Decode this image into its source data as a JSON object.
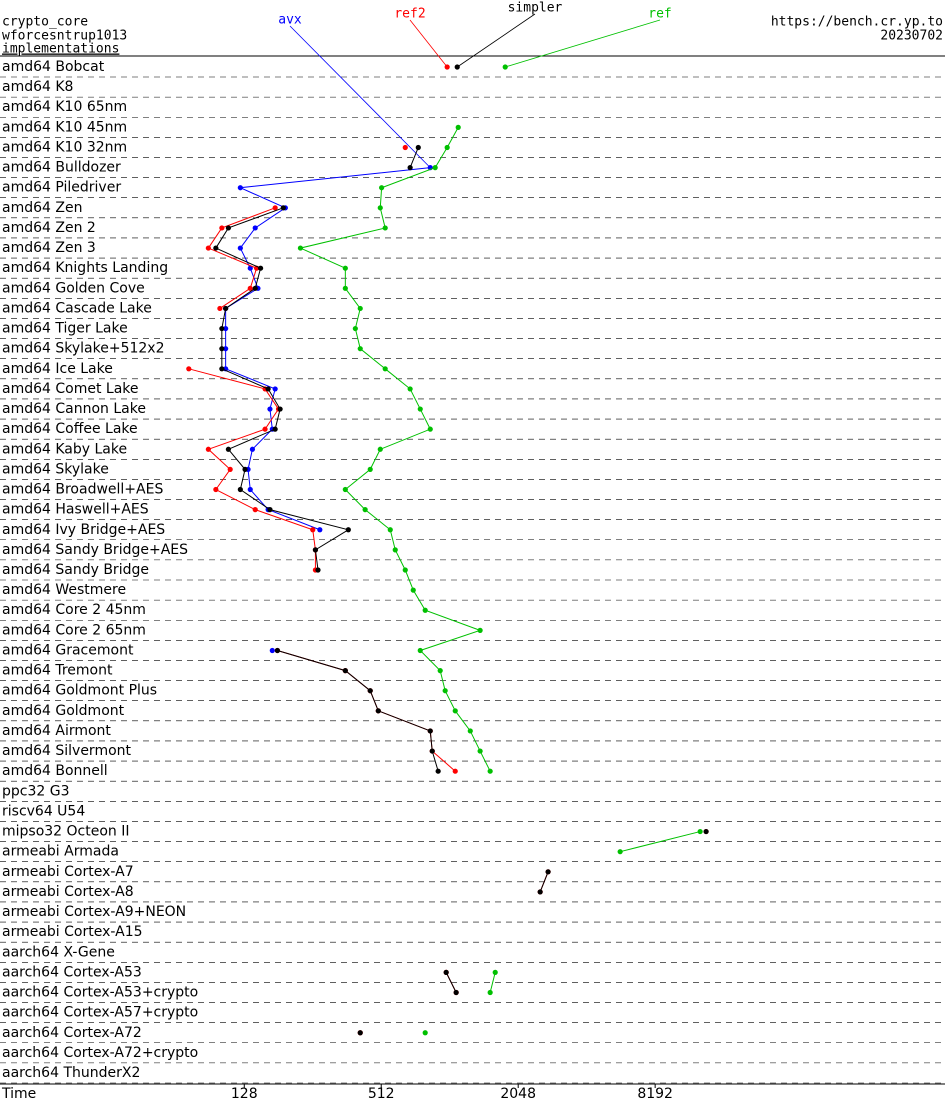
{
  "chart_data": {
    "type": "line",
    "log_x": true,
    "header": {
      "left": [
        "crypto_core",
        "wforcesntrup1013",
        "implementations"
      ],
      "right": [
        "https://bench.cr.yp.to",
        "20230702"
      ]
    },
    "x_label": "Time",
    "xlim": [
      10.8,
      154000
    ],
    "xticks": [
      128,
      512,
      2048,
      8192
    ],
    "categories": [
      "amd64 Bobcat",
      "amd64 K8",
      "amd64 K10 65nm",
      "amd64 K10 45nm",
      "amd64 K10 32nm",
      "amd64 Bulldozer",
      "amd64 Piledriver",
      "amd64 Zen",
      "amd64 Zen 2",
      "amd64 Zen 3",
      "amd64 Knights Landing",
      "amd64 Golden Cove",
      "amd64 Cascade Lake",
      "amd64 Tiger Lake",
      "amd64 Skylake+512x2",
      "amd64 Ice Lake",
      "amd64 Comet Lake",
      "amd64 Cannon Lake",
      "amd64 Coffee Lake",
      "amd64 Kaby Lake",
      "amd64 Skylake",
      "amd64 Broadwell+AES",
      "amd64 Haswell+AES",
      "amd64 Ivy Bridge+AES",
      "amd64 Sandy Bridge+AES",
      "amd64 Sandy Bridge",
      "amd64 Westmere",
      "amd64 Core 2 45nm",
      "amd64 Core 2 65nm",
      "amd64 Gracemont",
      "amd64 Tremont",
      "amd64 Goldmont Plus",
      "amd64 Goldmont",
      "amd64 Airmont",
      "amd64 Silvermont",
      "amd64 Bonnell",
      "ppc32 G3",
      "riscv64 U54",
      "mipso32 Octeon II",
      "armeabi Armada",
      "armeabi Cortex-A7",
      "armeabi Cortex-A8",
      "armeabi Cortex-A9+NEON",
      "armeabi Cortex-A15",
      "aarch64 X-Gene",
      "aarch64 Cortex-A53",
      "aarch64 Cortex-A53+crypto",
      "aarch64 Cortex-A57+crypto",
      "aarch64 Cortex-A72",
      "aarch64 Cortex-A72+crypto",
      "aarch64 ThunderX2"
    ],
    "series": [
      {
        "name": "avx",
        "color": "#0000ff",
        "values": [
          null,
          null,
          null,
          null,
          null,
          841,
          123,
          194,
          143,
          123,
          136,
          147,
          106,
          106,
          106,
          106,
          175,
          166,
          170,
          139,
          133,
          136,
          163,
          275,
          null,
          null,
          null,
          null,
          null,
          170,
          null,
          null,
          null,
          null,
          null,
          null,
          null,
          null,
          null,
          null,
          null,
          null,
          null,
          null,
          null,
          null,
          null,
          null,
          null,
          null,
          null
        ]
      },
      {
        "name": "ref2",
        "color": "#ff0000",
        "values": [
          998,
          null,
          null,
          null,
          653,
          null,
          null,
          175,
          102,
          89,
          145,
          136,
          100,
          null,
          null,
          73,
          158,
          181,
          158,
          89,
          111,
          96,
          143,
          256,
          263,
          263,
          null,
          null,
          null,
          179,
          356,
          458,
          497,
          841,
          858,
          1083,
          null,
          null,
          13720,
          null,
          2772,
          2558,
          null,
          null,
          null,
          988,
          1093,
          null,
          414,
          null,
          null
        ]
      },
      {
        "name": "simpler",
        "color": "#000000",
        "values": [
          1105,
          null,
          null,
          null,
          745,
          686,
          null,
          190,
          109,
          96,
          151,
          143,
          106,
          102,
          102,
          102,
          163,
          184,
          175,
          109,
          129,
          123,
          166,
          367,
          263,
          270,
          null,
          null,
          null,
          179,
          356,
          458,
          497,
          841,
          858,
          911,
          null,
          null,
          13720,
          null,
          2772,
          2558,
          null,
          null,
          null,
          988,
          1093,
          null,
          414,
          null,
          null
        ]
      },
      {
        "name": "ref",
        "color": "#00c000",
        "values": [
          1796,
          null,
          null,
          1116,
          998,
          884,
          514,
          507,
          533,
          226,
          356,
          356,
          414,
          394,
          414,
          533,
          686,
          760,
          841,
          507,
          458,
          356,
          435,
          561,
          590,
          653,
          708,
          799,
          1393,
          760,
          930,
          978,
          1083,
          1261,
          1393,
          1542,
          null,
          null,
          12915,
          5748,
          null,
          null,
          null,
          null,
          null,
          1623,
          1542,
          null,
          799,
          null,
          null
        ]
      }
    ]
  }
}
